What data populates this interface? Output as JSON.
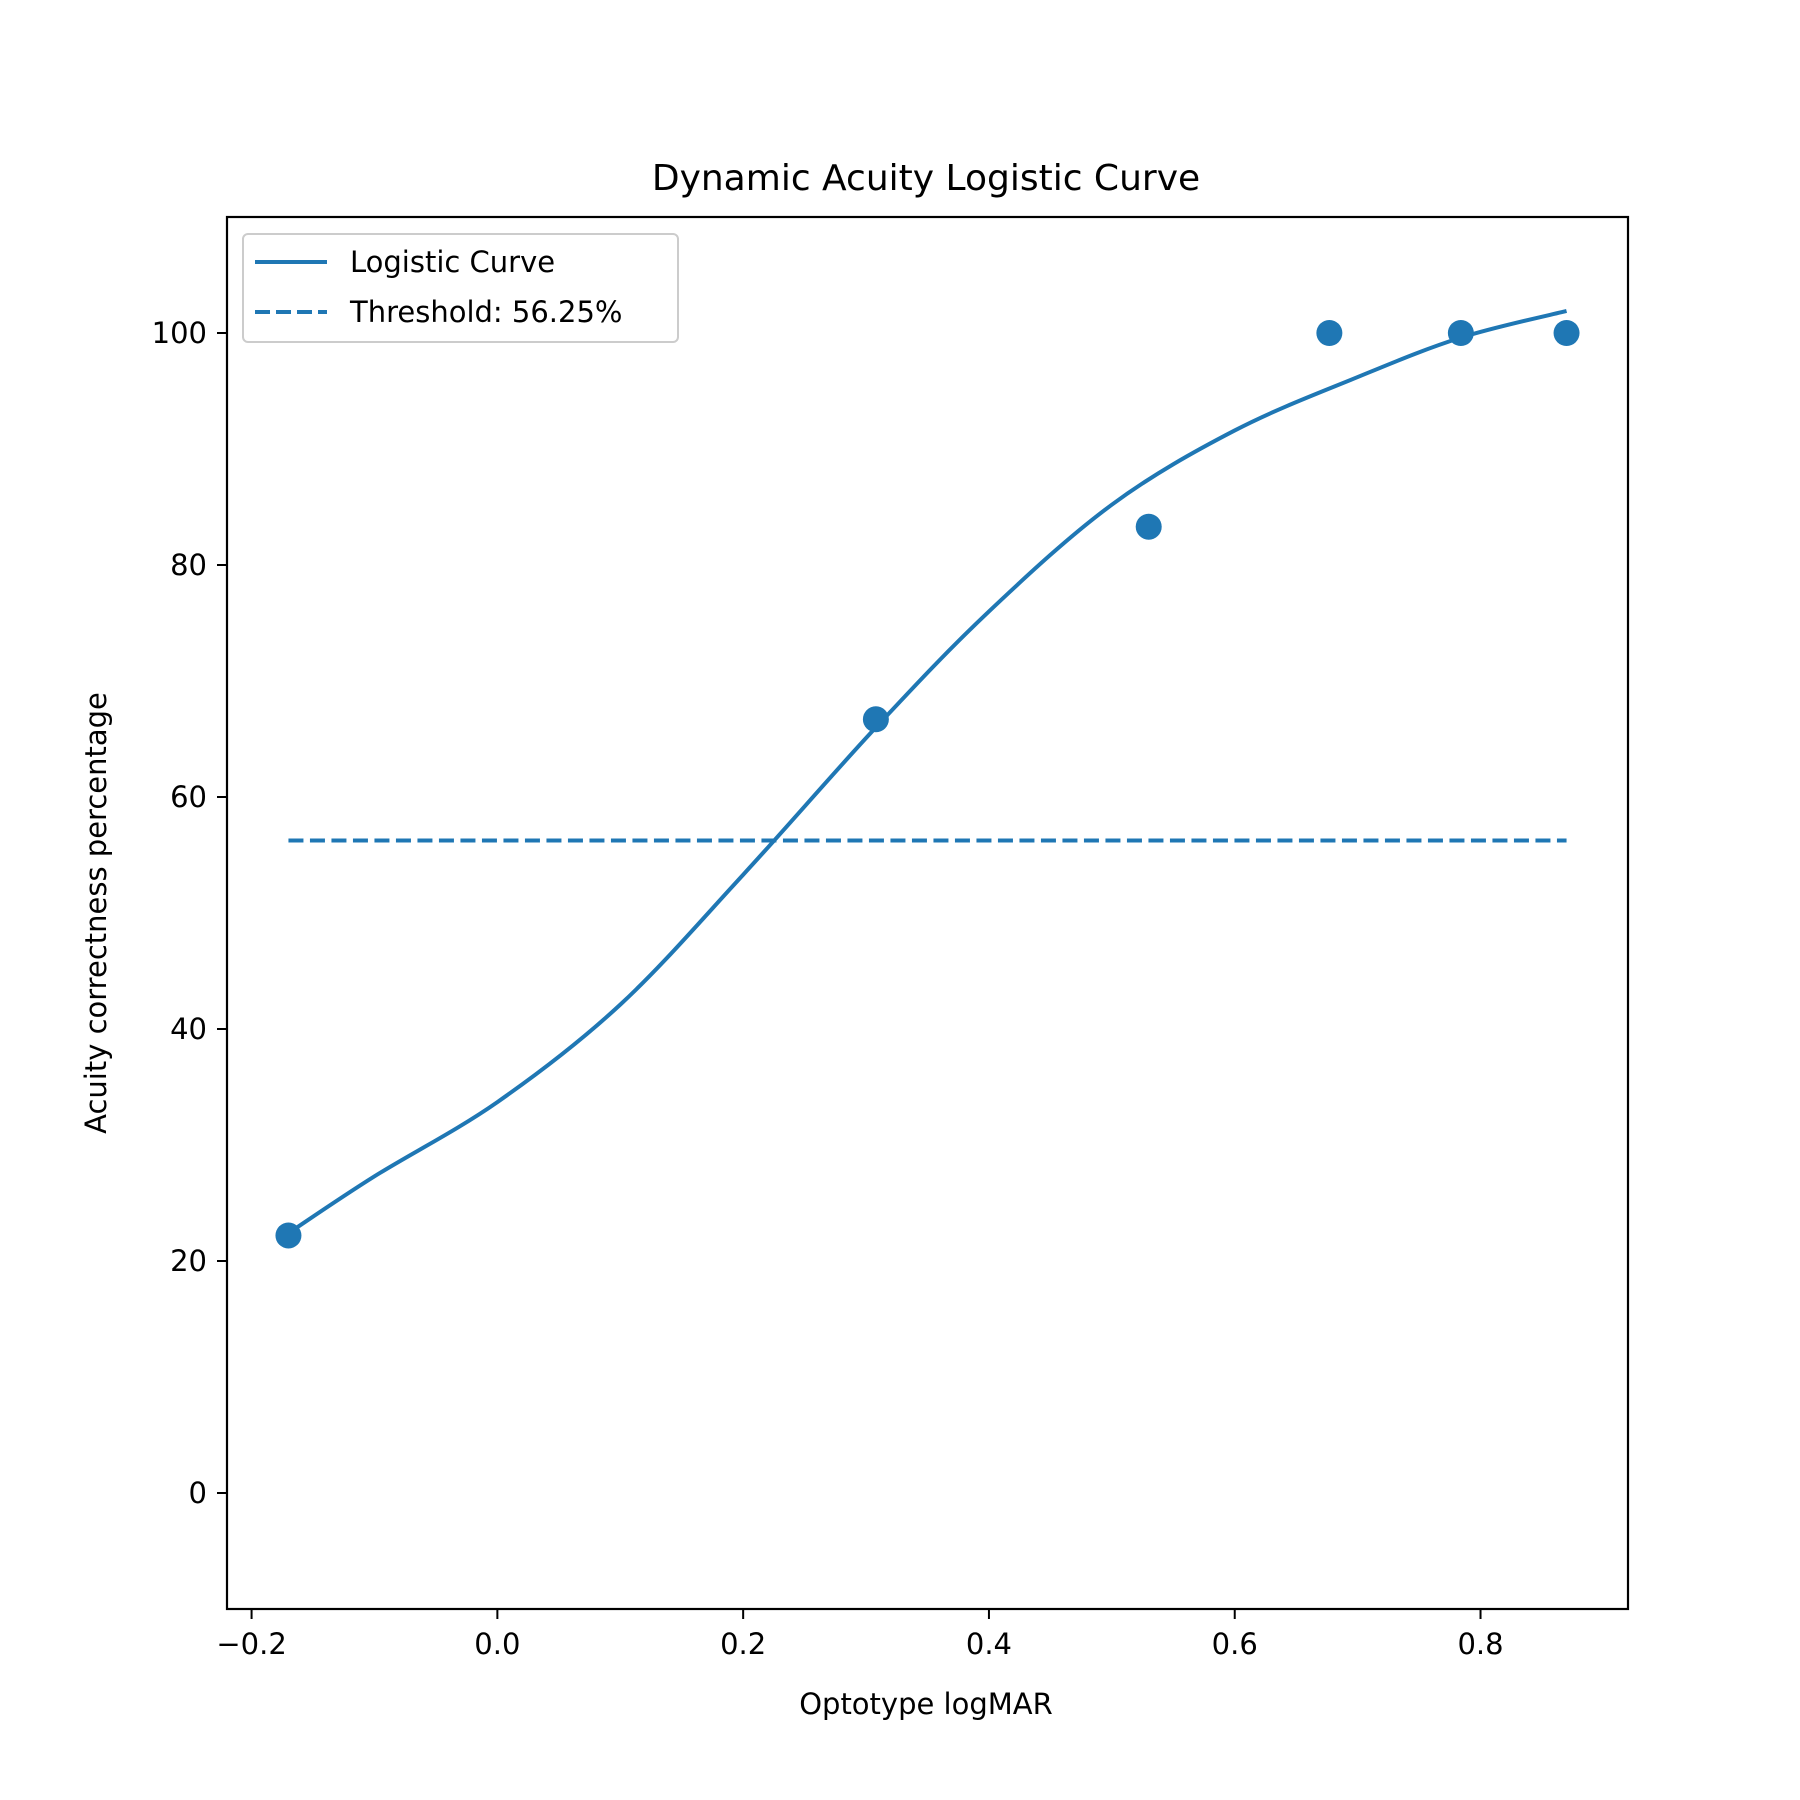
{
  "chart_data": {
    "type": "line",
    "title": "Dynamic Acuity Logistic Curve",
    "xlabel": "Optotype logMAR",
    "ylabel": "Acuity correctness percentage",
    "xlim": [
      -0.22,
      0.92
    ],
    "ylim": [
      -10,
      110
    ],
    "xticks": [
      -0.2,
      0.0,
      0.2,
      0.4,
      0.6,
      0.8
    ],
    "xtick_labels": [
      "−0.2",
      "0.0",
      "0.2",
      "0.4",
      "0.6",
      "0.8"
    ],
    "yticks": [
      0,
      20,
      40,
      60,
      80,
      100
    ],
    "ytick_labels": [
      "0",
      "20",
      "40",
      "60",
      "80",
      "100"
    ],
    "grid": false,
    "legend_position": "top-left",
    "color": "#1f77b4",
    "series": [
      {
        "name": "Logistic Curve",
        "kind": "line",
        "style": "solid",
        "x": [
          -0.17,
          -0.1,
          0.0,
          0.1,
          0.2,
          0.308,
          0.4,
          0.5,
          0.6,
          0.7,
          0.784,
          0.87
        ],
        "y": [
          22.4,
          27.3,
          33.7,
          42.1,
          53.3,
          66.0,
          76.0,
          85.2,
          91.6,
          96.2,
          99.6,
          101.9
        ]
      },
      {
        "name": "Threshold: 56.25%",
        "kind": "line",
        "style": "dashed",
        "x": [
          -0.17,
          0.87
        ],
        "y": [
          56.25,
          56.25
        ]
      },
      {
        "kind": "scatter",
        "x": [
          -0.17,
          0.308,
          0.53,
          0.677,
          0.784,
          0.87
        ],
        "y": [
          22.2,
          66.7,
          83.3,
          100,
          100,
          100
        ]
      }
    ]
  }
}
